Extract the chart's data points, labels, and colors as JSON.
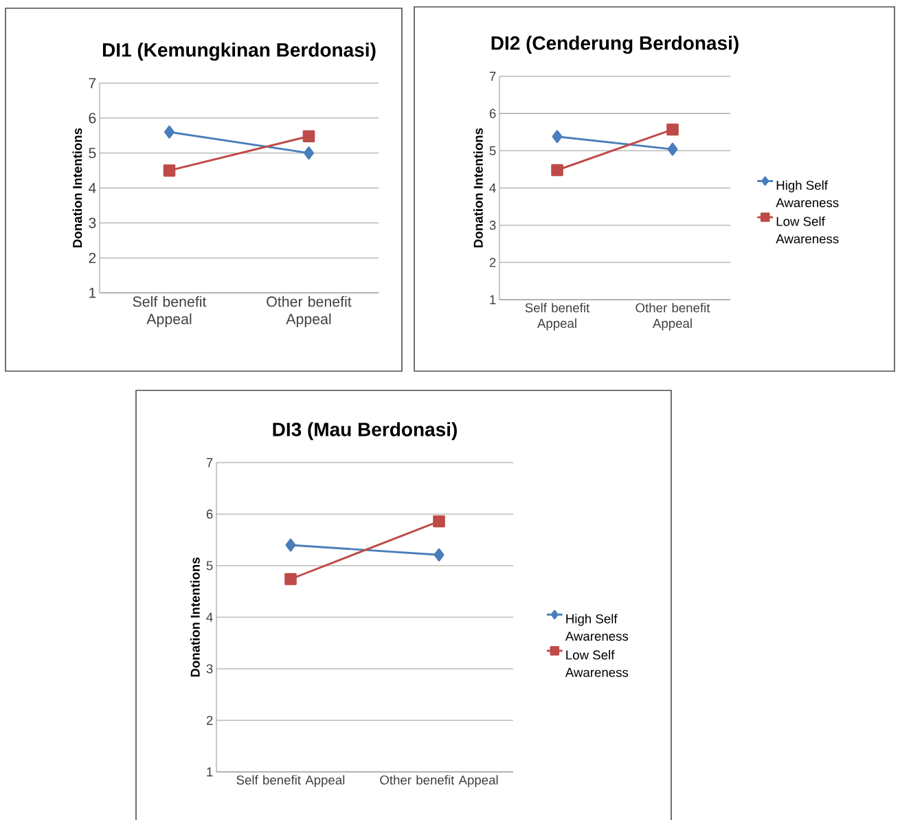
{
  "chart_data": [
    {
      "type": "line",
      "title": "DI1 (Kemungkinan Berdonasi)",
      "ylabel": "Donation Intentions",
      "categories": [
        "Self benefit Appeal",
        "Other benefit Appeal"
      ],
      "ylim": [
        1,
        7
      ],
      "yticks": [
        1,
        2,
        3,
        4,
        5,
        6,
        7
      ],
      "grid": "y",
      "legend": false,
      "series": [
        {
          "color": "#4a7ebb",
          "marker": "diamond",
          "values": [
            5.6,
            5.0
          ]
        },
        {
          "color": "#be4b48",
          "marker": "square",
          "values": [
            4.5,
            5.48
          ]
        }
      ]
    },
    {
      "type": "line",
      "title": "DI2 (Cenderung Berdonasi)",
      "ylabel": "Donation Intentions",
      "categories": [
        "Self benefit Appeal",
        "Other benefit Appeal"
      ],
      "ylim": [
        1,
        7
      ],
      "yticks": [
        1,
        2,
        3,
        4,
        5,
        6,
        7
      ],
      "grid": "y",
      "legend": "right",
      "series": [
        {
          "name": "High Self Awareness",
          "color": "#4a7ebb",
          "marker": "diamond",
          "values": [
            5.38,
            5.04
          ]
        },
        {
          "name": "Low Self Awareness",
          "color": "#be4b48",
          "marker": "square",
          "values": [
            4.48,
            5.57
          ]
        }
      ]
    },
    {
      "type": "line",
      "title": "DI3 (Mau Berdonasi)",
      "ylabel": "Donation Intentions",
      "categories": [
        "Self benefit Appeal",
        "Other benefit Appeal"
      ],
      "ylim": [
        1,
        7
      ],
      "yticks": [
        1,
        2,
        3,
        4,
        5,
        6,
        7
      ],
      "grid": "y",
      "legend": "right",
      "series": [
        {
          "name": "High Self Awareness",
          "color": "#4a7ebb",
          "marker": "diamond",
          "values": [
            5.4,
            5.21
          ]
        },
        {
          "name": "Low Self Awareness",
          "color": "#be4b48",
          "marker": "square",
          "values": [
            4.74,
            5.86
          ]
        }
      ]
    }
  ]
}
